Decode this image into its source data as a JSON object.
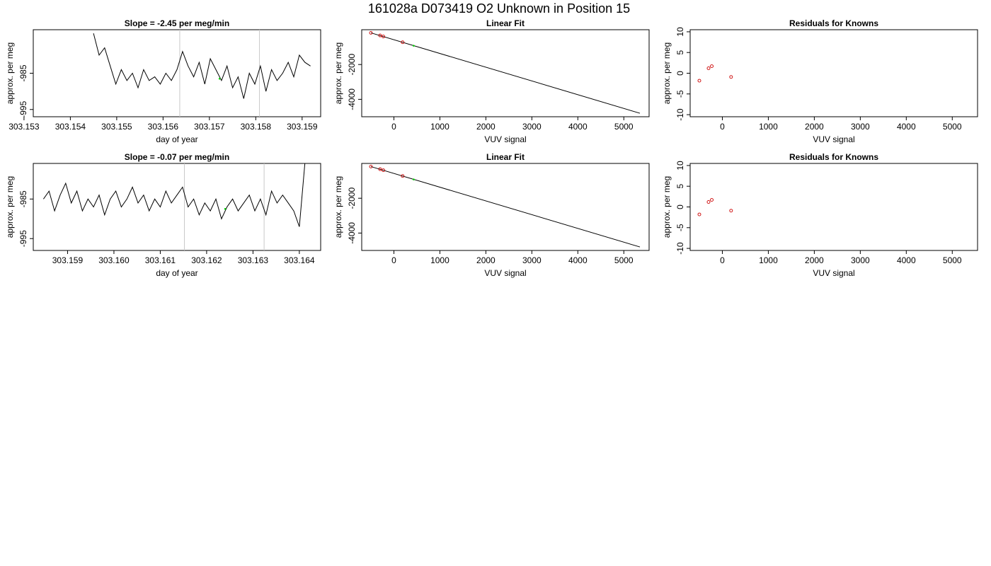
{
  "page_title": "161028a     D073419   O2 Unknown in Position  15",
  "colors": {
    "line": "#000000",
    "point_red": "#cc0000",
    "point_green": "#00cc00",
    "vline": "#c8c8c8"
  },
  "chart_data": [
    {
      "type": "line",
      "title": "Slope =  -2.45  per meg/min",
      "xlabel": "day of year",
      "ylabel": "approx. per meg",
      "xlim": [
        303.1532,
        303.1594
      ],
      "ylim": [
        -997,
        -973
      ],
      "xticks": [
        303.153,
        303.154,
        303.155,
        303.156,
        303.157,
        303.158,
        303.159
      ],
      "xtick_labels": [
        "303.153",
        "303.154",
        "303.155",
        "303.156",
        "303.157",
        "303.158",
        "303.159"
      ],
      "yticks": [
        -985,
        -995
      ],
      "ytick_labels": [
        "-985",
        "-995"
      ],
      "vlines": [
        303.15636,
        303.15808
      ],
      "series": [
        {
          "x": [
            303.1545,
            303.15462,
            303.15474,
            303.15486,
            303.15498,
            303.1551,
            303.15522,
            303.15534,
            303.15546,
            303.15558,
            303.1557,
            303.15582,
            303.15594,
            303.15606,
            303.15618,
            303.1563,
            303.15642,
            303.15654,
            303.15666,
            303.15678,
            303.1569,
            303.15702,
            303.15714,
            303.15726,
            303.15738,
            303.1575,
            303.15762,
            303.15774,
            303.15786,
            303.15798,
            303.1581,
            303.15822,
            303.15834,
            303.15846,
            303.15858,
            303.1587,
            303.15882,
            303.15894,
            303.15906,
            303.15918
          ],
          "y": [
            -974,
            -980,
            -978,
            -983,
            -988,
            -984,
            -987,
            -985,
            -989,
            -984,
            -987,
            -986,
            -988,
            -985,
            -987,
            -984,
            -979,
            -983,
            -986,
            -982,
            -988,
            -981,
            -984,
            -987,
            -983,
            -989,
            -986,
            -992,
            -985,
            -988,
            -983,
            -990,
            -984,
            -987,
            -985,
            -982,
            -986,
            -980,
            -982,
            -983
          ]
        },
        {
          "name": "",
          "x": [
            303.15722
          ],
          "y": [
            -986.5
          ],
          "color": "green",
          "style": "point"
        }
      ]
    },
    {
      "type": "scatter",
      "title": "Linear Fit",
      "xlabel": "VUV signal",
      "ylabel": "approx. per meg",
      "xlim": [
        -700,
        5550
      ],
      "ylim": [
        -5000,
        0
      ],
      "xticks": [
        0,
        1000,
        2000,
        3000,
        4000,
        5000
      ],
      "xtick_labels": [
        "0",
        "1000",
        "2000",
        "3000",
        "4000",
        "5000"
      ],
      "yticks": [
        -2000,
        -4000
      ],
      "ytick_labels": [
        "-2000",
        "-4000"
      ],
      "fit_line": {
        "x": [
          -500,
          5350
        ],
        "y": [
          -180,
          -4800
        ]
      },
      "series": [
        {
          "x": [
            -500,
            -300,
            -230,
            190
          ],
          "y": [
            -180,
            -330,
            -390,
            -720
          ],
          "color": "red",
          "style": "circle"
        },
        {
          "x": [
            430
          ],
          "y": [
            -920
          ],
          "color": "green",
          "style": "point"
        }
      ]
    },
    {
      "type": "scatter",
      "title": "Residuals for Knowns",
      "xlabel": "VUV signal",
      "ylabel": "approx. per meg",
      "xlim": [
        -700,
        5550
      ],
      "ylim": [
        -10.5,
        10.5
      ],
      "xticks": [
        0,
        1000,
        2000,
        3000,
        4000,
        5000
      ],
      "xtick_labels": [
        "0",
        "1000",
        "2000",
        "3000",
        "4000",
        "5000"
      ],
      "yticks": [
        10,
        5,
        0,
        -5,
        -10
      ],
      "ytick_labels": [
        "10",
        "5",
        "0",
        "-5",
        "-10"
      ],
      "series": [
        {
          "x": [
            -500,
            -300,
            -230,
            190
          ],
          "y": [
            -1.8,
            1.2,
            1.7,
            -0.9
          ],
          "color": "red",
          "style": "circle"
        }
      ]
    },
    {
      "type": "line",
      "title": "Slope =  -0.07  per meg/min",
      "xlabel": "day of year",
      "ylabel": "approx. per meg",
      "xlim": [
        303.15826,
        303.16446
      ],
      "ylim": [
        -998,
        -976
      ],
      "xticks": [
        303.159,
        303.16,
        303.161,
        303.162,
        303.163,
        303.164
      ],
      "xtick_labels": [
        "303.159",
        "303.160",
        "303.161",
        "303.162",
        "303.163",
        "303.164"
      ],
      "yticks": [
        -985,
        -995
      ],
      "ytick_labels": [
        "-985",
        "-995"
      ],
      "vlines": [
        303.16152,
        303.16324
      ],
      "series": [
        {
          "x": [
            303.15848,
            303.1586,
            303.15872,
            303.15884,
            303.15896,
            303.15908,
            303.1592,
            303.15932,
            303.15944,
            303.15956,
            303.15968,
            303.1598,
            303.15992,
            303.16004,
            303.16016,
            303.16028,
            303.1604,
            303.16052,
            303.16064,
            303.16076,
            303.16088,
            303.161,
            303.16112,
            303.16124,
            303.16136,
            303.16148,
            303.1616,
            303.16172,
            303.16184,
            303.16196,
            303.16208,
            303.1622,
            303.16232,
            303.16244,
            303.16256,
            303.16268,
            303.1628,
            303.16292,
            303.16304,
            303.16316,
            303.16328,
            303.1634,
            303.16352,
            303.16364,
            303.16376,
            303.16388,
            303.164,
            303.16412
          ],
          "y": [
            -985,
            -983,
            -988,
            -984,
            -981,
            -986,
            -983,
            -988,
            -985,
            -987,
            -984,
            -989,
            -985,
            -983,
            -987,
            -985,
            -982,
            -986,
            -984,
            -988,
            -985,
            -987,
            -983,
            -986,
            -984,
            -982,
            -987,
            -985,
            -989,
            -986,
            -988,
            -985,
            -990,
            -987,
            -985,
            -988,
            -986,
            -984,
            -988,
            -985,
            -989,
            -983,
            -986,
            -984,
            -986,
            -988,
            -992,
            -976
          ],
          "color": "black"
        },
        {
          "name": "",
          "x": [
            303.1624
          ],
          "y": [
            -987.5
          ],
          "color": "green",
          "style": "point"
        }
      ]
    },
    {
      "type": "scatter",
      "title": "Linear Fit",
      "xlabel": "VUV signal",
      "ylabel": "approx. per meg",
      "xlim": [
        -700,
        5550
      ],
      "ylim": [
        -5000,
        0
      ],
      "xticks": [
        0,
        1000,
        2000,
        3000,
        4000,
        5000
      ],
      "xtick_labels": [
        "0",
        "1000",
        "2000",
        "3000",
        "4000",
        "5000"
      ],
      "yticks": [
        -2000,
        -4000
      ],
      "ytick_labels": [
        "-2000",
        "-4000"
      ],
      "fit_line": {
        "x": [
          -500,
          5350
        ],
        "y": [
          -180,
          -4800
        ]
      },
      "series": [
        {
          "x": [
            -500,
            -300,
            -230,
            190
          ],
          "y": [
            -180,
            -330,
            -390,
            -720
          ],
          "color": "red",
          "style": "circle"
        },
        {
          "x": [
            430
          ],
          "y": [
            -920
          ],
          "color": "green",
          "style": "point"
        }
      ]
    },
    {
      "type": "scatter",
      "title": "Residuals for Knowns",
      "xlabel": "VUV signal",
      "ylabel": "approx. per meg",
      "xlim": [
        -700,
        5550
      ],
      "ylim": [
        -10.5,
        10.5
      ],
      "xticks": [
        0,
        1000,
        2000,
        3000,
        4000,
        5000
      ],
      "xtick_labels": [
        "0",
        "1000",
        "2000",
        "3000",
        "4000",
        "5000"
      ],
      "yticks": [
        10,
        5,
        0,
        -5,
        -10
      ],
      "ytick_labels": [
        "10",
        "5",
        "0",
        "-5",
        "-10"
      ],
      "series": [
        {
          "x": [
            -500,
            -300,
            -230,
            190
          ],
          "y": [
            -1.8,
            1.2,
            1.7,
            -0.9
          ],
          "color": "red",
          "style": "circle"
        }
      ]
    }
  ]
}
